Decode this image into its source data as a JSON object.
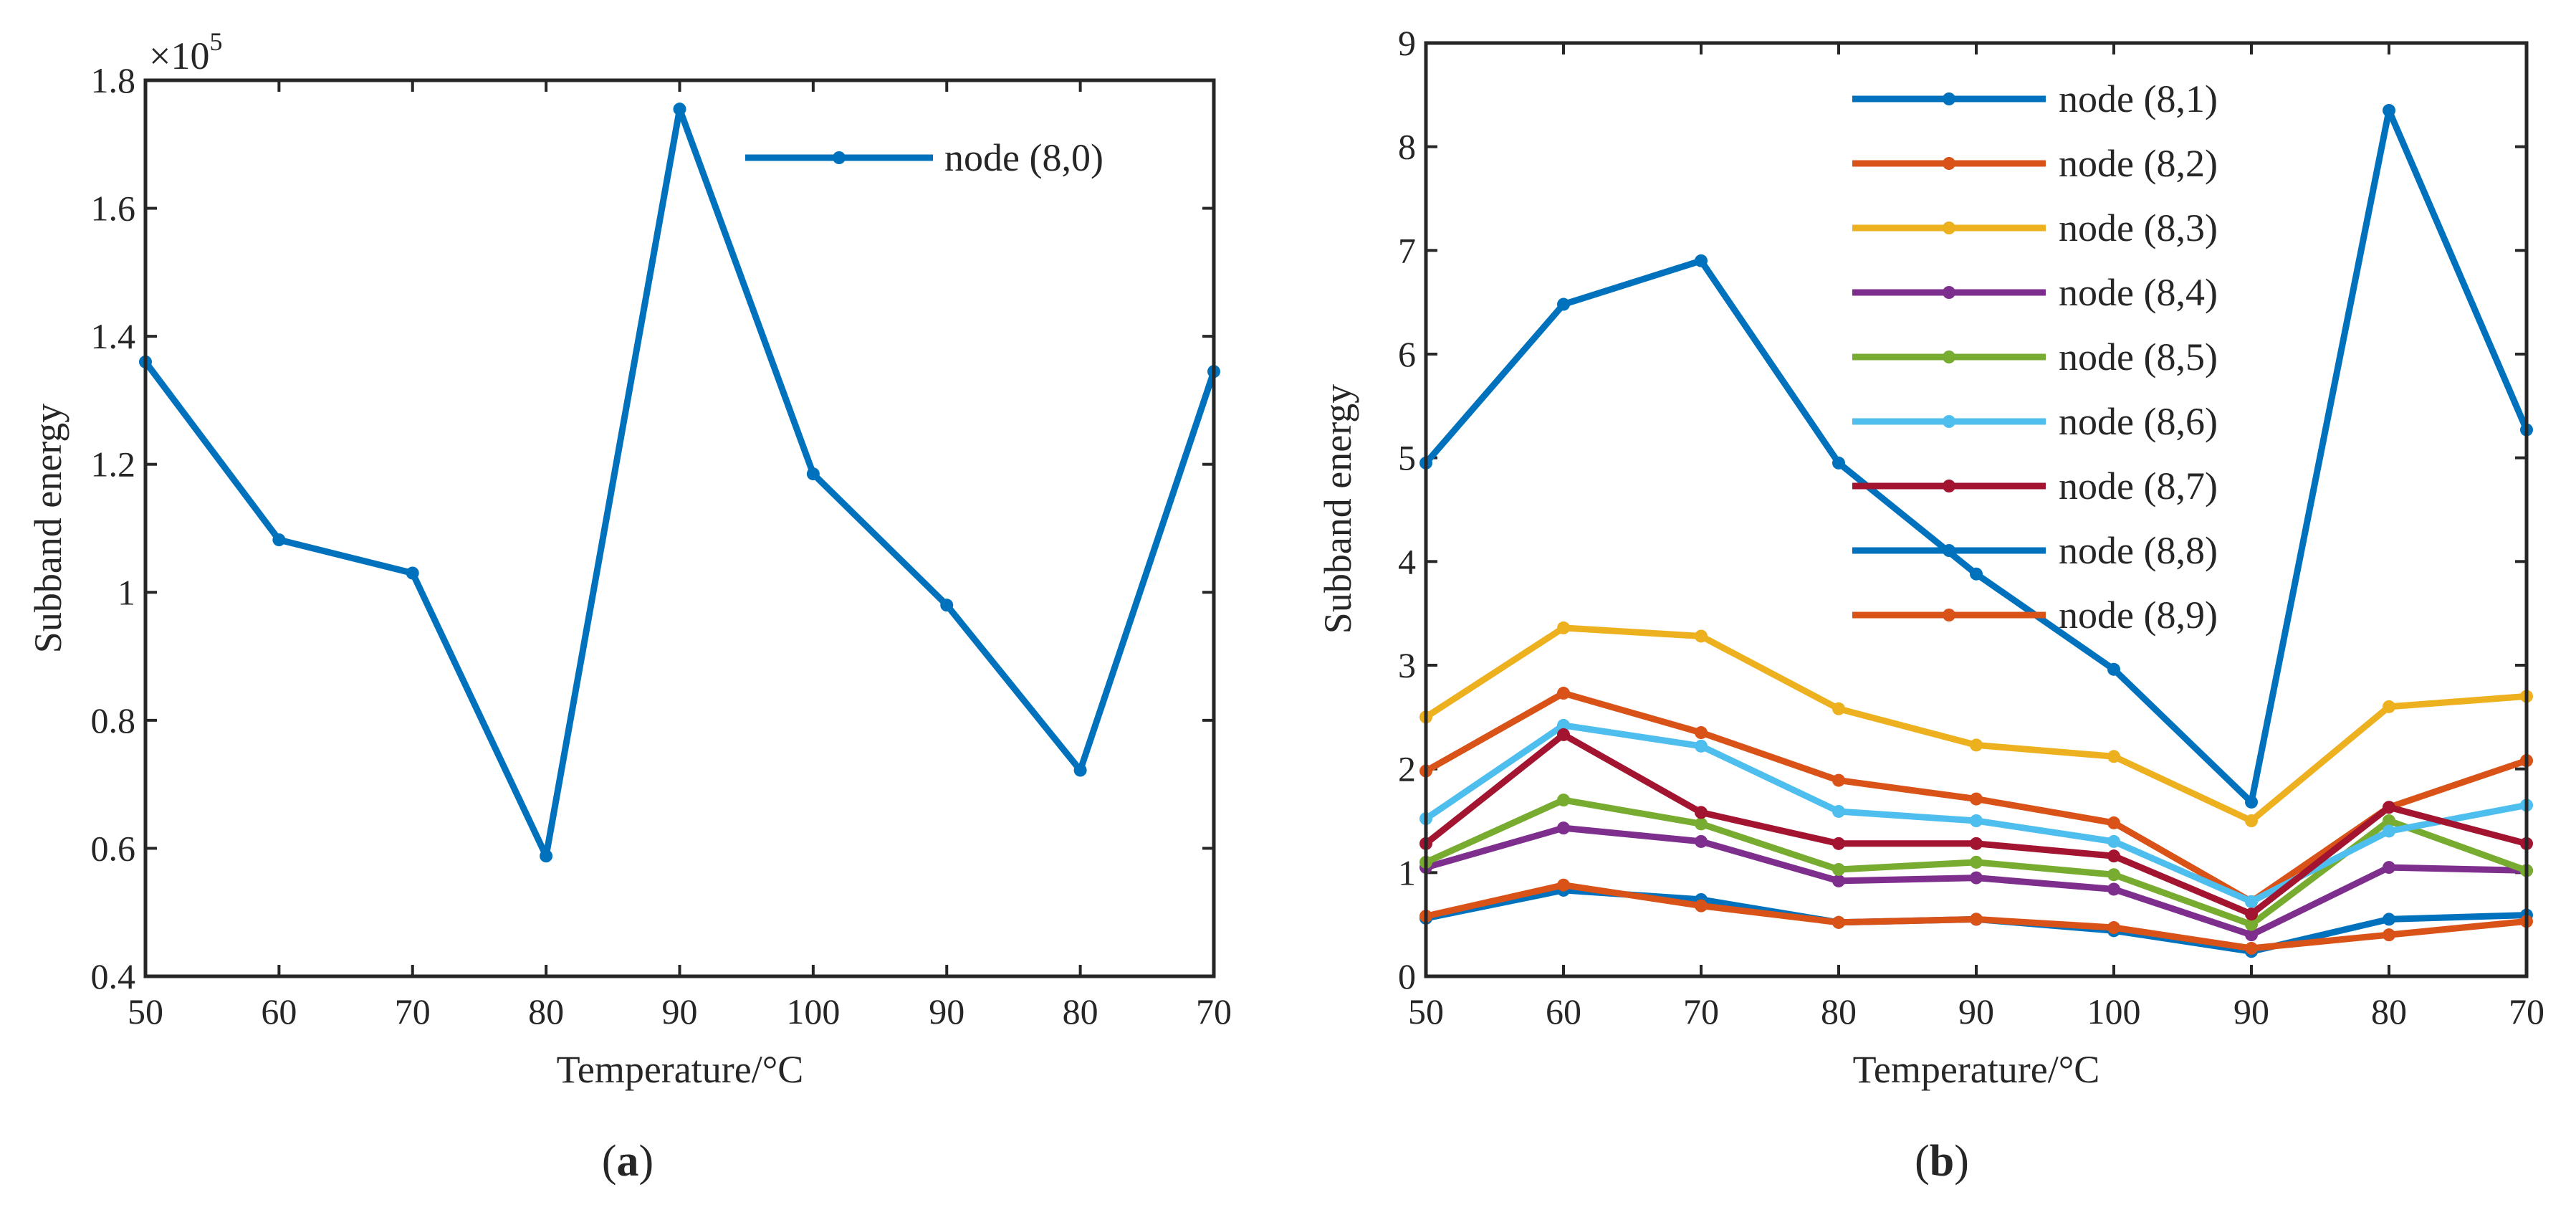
{
  "chart_data": [
    {
      "id": "a",
      "type": "line",
      "caption_open": "(",
      "caption_letter": "a",
      "caption_close": ")",
      "xlabel": "Temperature/°C",
      "ylabel": "Subband energy",
      "y_exponent": "×10",
      "y_exponent_power": "5",
      "categories": [
        "50",
        "60",
        "70",
        "80",
        "90",
        "100",
        "90",
        "80",
        "70"
      ],
      "ylim": [
        0.4,
        1.8
      ],
      "yticks": [
        0.4,
        0.6,
        0.8,
        1,
        1.2,
        1.4,
        1.6,
        1.8
      ],
      "ytick_labels": [
        "0.4",
        "0.6",
        "0.8",
        "1",
        "1.2",
        "1.4",
        "1.6",
        "1.8"
      ],
      "legend_position": "top-right",
      "series": [
        {
          "name": "node (8,0)",
          "color": "#0072BD",
          "values": [
            1.36,
            1.082,
            1.03,
            0.588,
            1.755,
            1.185,
            0.98,
            0.722,
            1.345
          ]
        }
      ]
    },
    {
      "id": "b",
      "type": "line",
      "caption_open": "(",
      "caption_letter": "b",
      "caption_close": ")",
      "xlabel": "Temperature/°C",
      "ylabel": "Subband energy",
      "categories": [
        "50",
        "60",
        "70",
        "80",
        "90",
        "100",
        "90",
        "80",
        "70"
      ],
      "ylim": [
        0,
        9
      ],
      "yticks": [
        0,
        1,
        2,
        3,
        4,
        5,
        6,
        7,
        8,
        9
      ],
      "ytick_labels": [
        "0",
        "1",
        "2",
        "3",
        "4",
        "5",
        "6",
        "7",
        "8",
        "9"
      ],
      "legend_position": "top-center",
      "series": [
        {
          "name": "node (8,1)",
          "color": "#0072BD",
          "values": [
            4.95,
            6.48,
            6.9,
            4.95,
            3.88,
            2.96,
            1.68,
            8.35,
            5.27
          ]
        },
        {
          "name": "node (8,2)",
          "color": "#D95319",
          "values": [
            1.98,
            2.73,
            2.35,
            1.89,
            1.71,
            1.48,
            0.72,
            1.63,
            2.08
          ]
        },
        {
          "name": "node (8,3)",
          "color": "#EDB120",
          "values": [
            2.5,
            3.36,
            3.28,
            2.58,
            2.23,
            2.12,
            1.5,
            2.6,
            2.7
          ]
        },
        {
          "name": "node (8,4)",
          "color": "#7E2F8E",
          "values": [
            1.05,
            1.43,
            1.3,
            0.92,
            0.95,
            0.84,
            0.4,
            1.05,
            1.02
          ]
        },
        {
          "name": "node (8,5)",
          "color": "#77AC30",
          "values": [
            1.1,
            1.7,
            1.47,
            1.03,
            1.1,
            0.98,
            0.5,
            1.5,
            1.02
          ]
        },
        {
          "name": "node (8,6)",
          "color": "#4DBEEE",
          "values": [
            1.52,
            2.42,
            2.22,
            1.59,
            1.5,
            1.3,
            0.72,
            1.4,
            1.65
          ]
        },
        {
          "name": "node (8,7)",
          "color": "#A2142F",
          "values": [
            1.28,
            2.33,
            1.58,
            1.28,
            1.28,
            1.16,
            0.6,
            1.63,
            1.28
          ]
        },
        {
          "name": "node (8,8)",
          "color": "#0072BD",
          "values": [
            0.56,
            0.83,
            0.74,
            0.52,
            0.55,
            0.44,
            0.24,
            0.55,
            0.59
          ]
        },
        {
          "name": "node (8,9)",
          "color": "#D95319",
          "values": [
            0.58,
            0.88,
            0.68,
            0.52,
            0.55,
            0.47,
            0.27,
            0.4,
            0.53
          ]
        }
      ]
    }
  ]
}
